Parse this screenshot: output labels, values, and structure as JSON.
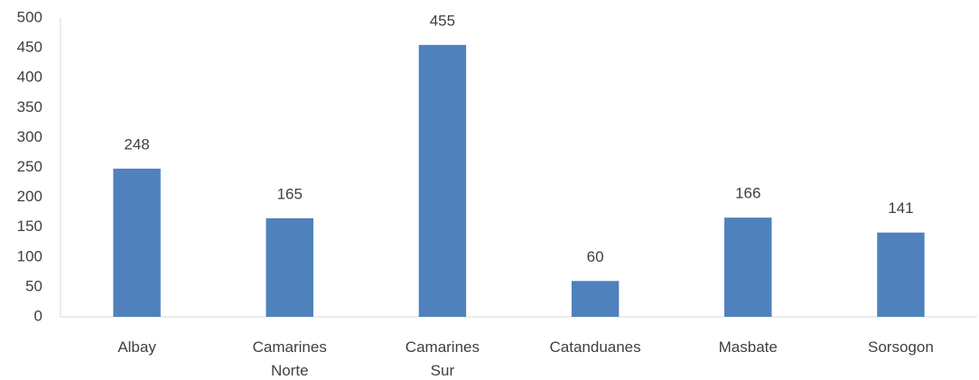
{
  "chart_data": {
    "type": "bar",
    "categories": [
      "Albay",
      "Camarines Norte",
      "Camarines Sur",
      "Catanduanes",
      "Masbate",
      "Sorsogon"
    ],
    "values": [
      248,
      165,
      455,
      60,
      166,
      141
    ],
    "color": "#4f81bd",
    "ylim": [
      0,
      500
    ],
    "yticks": [
      0,
      50,
      100,
      150,
      200,
      250,
      300,
      350,
      400,
      450,
      500
    ],
    "grid": false,
    "data_labels": true
  }
}
